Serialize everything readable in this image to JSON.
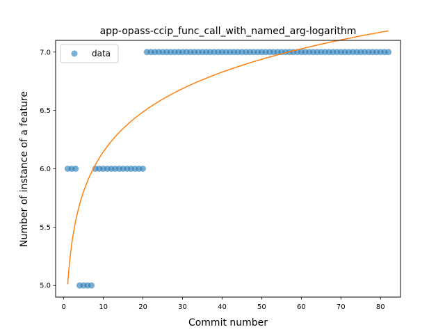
{
  "chart_data": {
    "type": "scatter",
    "title": "app-opass-ccip_func_call_with_named_arg-logarithm",
    "xlabel": "Commit number",
    "ylabel": "Number of instance of a feature",
    "xlim": [
      -2.05,
      85.05
    ],
    "ylim": [
      4.9,
      7.1
    ],
    "xticks": [
      0,
      10,
      20,
      30,
      40,
      50,
      60,
      70,
      80
    ],
    "yticks": [
      5.0,
      5.5,
      6.0,
      6.5,
      7.0
    ],
    "ytick_labels": [
      "5.0",
      "5.5",
      "6.0",
      "6.5",
      "7.0"
    ],
    "grid": false,
    "legend": {
      "position": "top-left",
      "entries": [
        "data"
      ]
    },
    "colors": {
      "data": "#1f77b4",
      "fit": "#ff7f0e"
    },
    "series": [
      {
        "name": "data",
        "kind": "scatter",
        "x": [
          1,
          2,
          3,
          4,
          5,
          6,
          7,
          8,
          9,
          10,
          11,
          12,
          13,
          14,
          15,
          16,
          17,
          18,
          19,
          20,
          21,
          22,
          23,
          24,
          25,
          26,
          27,
          28,
          29,
          30,
          31,
          32,
          33,
          34,
          35,
          36,
          37,
          38,
          39,
          40,
          41,
          42,
          43,
          44,
          45,
          46,
          47,
          48,
          49,
          50,
          51,
          52,
          53,
          54,
          55,
          56,
          57,
          58,
          59,
          60,
          61,
          62,
          63,
          64,
          65,
          66,
          67,
          68,
          69,
          70,
          71,
          72,
          73,
          74,
          75,
          76,
          77,
          78,
          79,
          80,
          81,
          82
        ],
        "y": [
          6,
          6,
          6,
          5,
          5,
          5,
          5,
          6,
          6,
          6,
          6,
          6,
          6,
          6,
          6,
          6,
          6,
          6,
          6,
          6,
          7,
          7,
          7,
          7,
          7,
          7,
          7,
          7,
          7,
          7,
          7,
          7,
          7,
          7,
          7,
          7,
          7,
          7,
          7,
          7,
          7,
          7,
          7,
          7,
          7,
          7,
          7,
          7,
          7,
          7,
          7,
          7,
          7,
          7,
          7,
          7,
          7,
          7,
          7,
          7,
          7,
          7,
          7,
          7,
          7,
          7,
          7,
          7,
          7,
          7,
          7,
          7,
          7,
          7,
          7,
          7,
          7,
          7,
          7,
          7,
          7,
          7
        ]
      },
      {
        "kind": "line",
        "model": "logarithmic",
        "a": 5.01,
        "b": 0.4928,
        "x_range": [
          1,
          82
        ]
      }
    ]
  }
}
